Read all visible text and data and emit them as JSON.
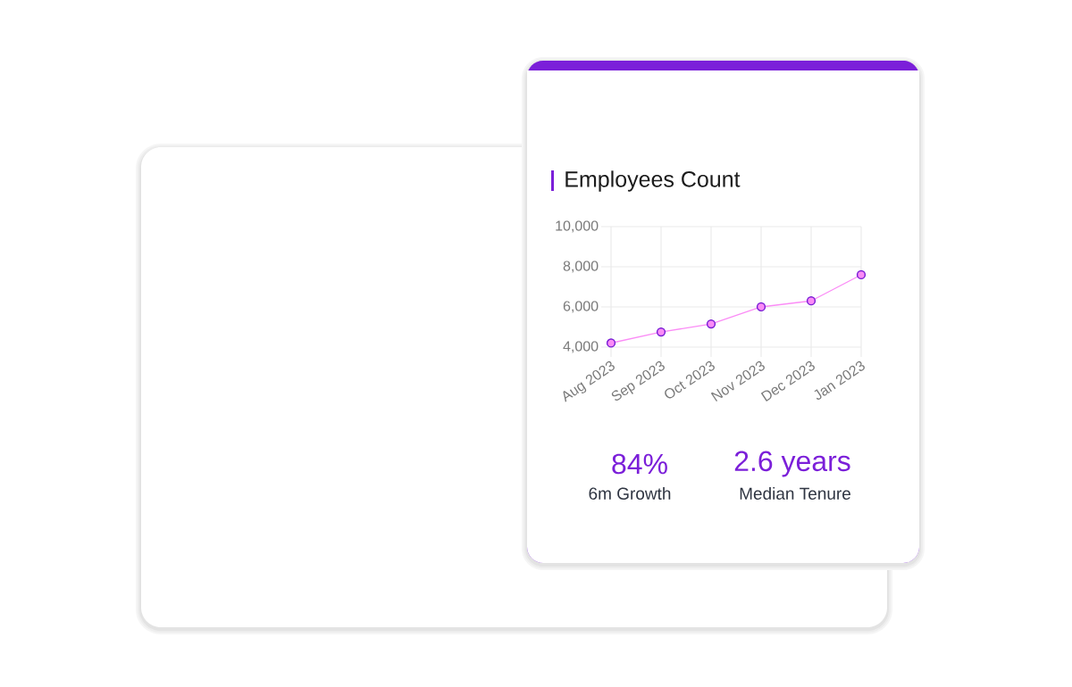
{
  "chart_data": {
    "type": "line",
    "title": "Employees Count",
    "categories": [
      "Aug 2023",
      "Sep 2023",
      "Oct 2023",
      "Nov 2023",
      "Dec 2023",
      "Jan 2023"
    ],
    "series": [
      {
        "color": "#fb8cf6",
        "values": [
          4200,
          4750,
          5150,
          6000,
          6300,
          7600
        ]
      }
    ],
    "ylim": [
      4000,
      10000
    ],
    "yticks": [
      {
        "value": 4000,
        "label": "4,000"
      },
      {
        "value": 6000,
        "label": "6,000"
      },
      {
        "value": 8000,
        "label": "8,000"
      },
      {
        "value": 10000,
        "label": "10,000"
      }
    ],
    "grid": true,
    "marker": "circle",
    "line_style": "solid",
    "annotations": [
      "84%",
      "6m Growth",
      "2.6 years",
      "Median Tenure"
    ]
  }
}
